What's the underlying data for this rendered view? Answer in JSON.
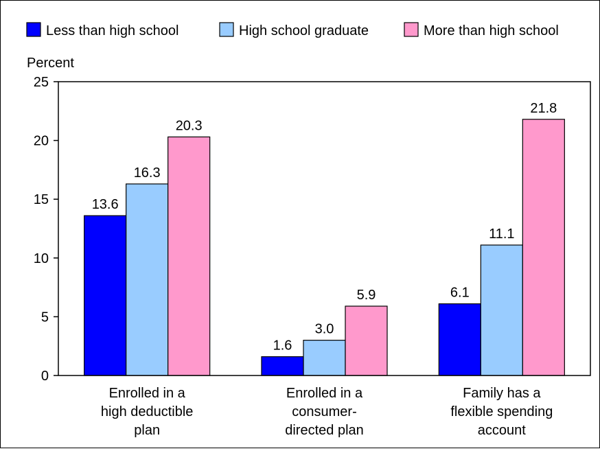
{
  "chart_data": {
    "type": "bar",
    "title": "",
    "ylabel": "Percent",
    "xlabel": "",
    "ylim": [
      0,
      25
    ],
    "yticks": [
      0,
      5,
      10,
      15,
      20,
      25
    ],
    "grid": false,
    "legend_position": "top",
    "categories": [
      [
        "Enrolled in a",
        "high deductible",
        "plan"
      ],
      [
        "Enrolled in a",
        "consumer-",
        "directed plan"
      ],
      [
        "Family has a",
        "flexible spending",
        "account"
      ]
    ],
    "series": [
      {
        "name": "Less than high school",
        "color": "#0000ff",
        "values": [
          13.6,
          1.6,
          6.1
        ]
      },
      {
        "name": "High school graduate",
        "color": "#99ccff",
        "values": [
          16.3,
          3.0,
          11.1
        ]
      },
      {
        "name": "More than high school",
        "color": "#ff99cc",
        "values": [
          20.3,
          5.9,
          21.8
        ]
      }
    ],
    "value_labels": [
      [
        "13.6",
        "1.6",
        "6.1"
      ],
      [
        "16.3",
        "3.0",
        "11.1"
      ],
      [
        "20.3",
        "5.9",
        "21.8"
      ]
    ]
  }
}
